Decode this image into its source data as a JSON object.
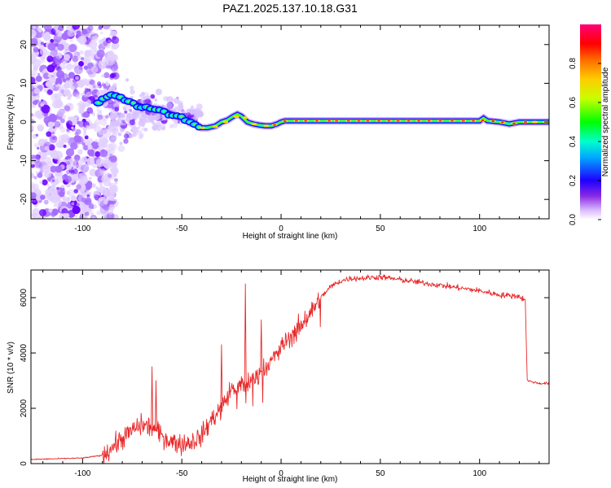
{
  "title": "PAZ1.2025.137.10.18.G31",
  "chart_data": [
    {
      "type": "heatmap",
      "xlabel": "Height of straight line (km)",
      "ylabel": "Frequency (Hz)",
      "xlim": [
        -126,
        135
      ],
      "ylim": [
        -25,
        25
      ],
      "xticks": [
        -100,
        -50,
        0,
        50,
        100
      ],
      "yticks": [
        -20,
        -10,
        0,
        10,
        20
      ],
      "colorbar": {
        "label": "Normalized spectral amplitude",
        "range": [
          0,
          1
        ],
        "ticks": [
          0.0,
          0.2,
          0.4,
          0.6,
          0.8
        ]
      },
      "ridge": {
        "x": [
          -92,
          -85,
          -80,
          -75,
          -70,
          -65,
          -60,
          -55,
          -50,
          -45,
          -40,
          -37,
          -33,
          -30,
          -27,
          -24,
          -22,
          -20,
          -17,
          -14,
          -11,
          -8,
          -5,
          -2,
          0,
          2,
          10,
          20,
          40,
          60,
          80,
          100,
          102,
          104,
          110,
          115,
          120,
          125,
          130,
          135
        ],
        "freq": [
          5,
          7,
          6,
          5,
          4,
          3.5,
          3,
          2,
          1,
          0,
          -1.5,
          -1.5,
          -1,
          0,
          0.5,
          1.5,
          2,
          1.5,
          0,
          -0.5,
          -0.8,
          -1,
          -1,
          -0.5,
          0,
          0.3,
          0.3,
          0.3,
          0.3,
          0.3,
          0.3,
          0.3,
          1,
          0.3,
          0,
          -0.5,
          0,
          0,
          0,
          0
        ]
      }
    },
    {
      "type": "line",
      "xlabel": "Height of straight line (km)",
      "ylabel": "SNR (10 * v/v)",
      "xlim": [
        -126,
        135
      ],
      "ylim": [
        0,
        7000
      ],
      "xticks": [
        -100,
        -50,
        0,
        50,
        100
      ],
      "yticks": [
        0,
        2000,
        4000,
        6000
      ],
      "color": "#e8292a",
      "series": [
        {
          "x": [
            -126,
            -110,
            -100,
            -90,
            -85,
            -80,
            -75,
            -70,
            -65,
            -60,
            -55,
            -50,
            -45,
            -40,
            -35,
            -30,
            -25,
            -20,
            -15,
            -10,
            -5,
            0,
            5,
            10,
            15,
            20,
            25,
            30,
            35,
            40,
            50,
            60,
            70,
            80,
            90,
            100,
            110,
            120,
            123,
            124,
            130,
            135
          ],
          "y": [
            150,
            180,
            200,
            300,
            600,
            900,
            1200,
            1400,
            1300,
            1000,
            800,
            700,
            800,
            1000,
            1600,
            2000,
            2700,
            2800,
            3000,
            3300,
            3700,
            4200,
            4600,
            5000,
            5500,
            6000,
            6400,
            6600,
            6700,
            6700,
            6750,
            6650,
            6550,
            6450,
            6350,
            6250,
            6100,
            6050,
            5900,
            3000,
            2900,
            2900
          ]
        }
      ],
      "spikes": [
        {
          "x": -65,
          "y": 3500
        },
        {
          "x": -63,
          "y": 3000
        },
        {
          "x": -30,
          "y": 4300
        },
        {
          "x": -18,
          "y": 6500
        },
        {
          "x": -10,
          "y": 5200
        }
      ]
    }
  ]
}
